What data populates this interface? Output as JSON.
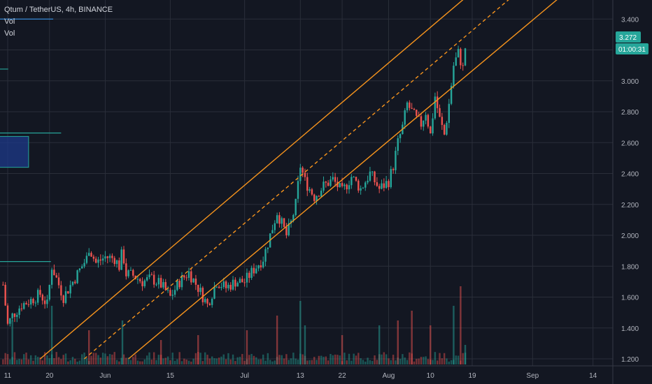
{
  "header": {
    "symbol": "Qtum / TetherUS, 4h, BINANCE",
    "indicators": [
      "Vol",
      "Vol"
    ]
  },
  "price_badge": {
    "price": "3.272",
    "countdown": "01:00:31",
    "color": "#26a69a"
  },
  "colors": {
    "background": "#131722",
    "grid": "#2a2e39",
    "up": "#26a69a",
    "down": "#ef5350",
    "channel": "#f7941d",
    "zone_fill": "#1e3a8a",
    "zone_border": "#26a69a"
  },
  "chart_data": {
    "type": "candlestick",
    "title": "Qtum / TetherUS, 4h, BINANCE",
    "y_ticks": [
      "3.400",
      "3.200",
      "3.000",
      "2.800",
      "2.600",
      "2.400",
      "2.200",
      "2.000",
      "1.800",
      "1.600",
      "1.400",
      "1.200"
    ],
    "ylim": [
      1.17,
      3.49
    ],
    "x_ticks": [
      "11",
      "20",
      "Jun",
      "15",
      "Jul",
      "13",
      "22",
      "Aug",
      "10",
      "19",
      "Sep",
      "14"
    ],
    "x_tick_days": [
      0,
      9,
      21,
      35,
      51,
      63,
      72,
      82,
      91,
      100,
      113,
      126
    ],
    "close_series": [
      [
        -1,
        1.68
      ],
      [
        0,
        1.42
      ],
      [
        1,
        1.48
      ],
      [
        3,
        1.55
      ],
      [
        5,
        1.58
      ],
      [
        7,
        1.62
      ],
      [
        8.5,
        1.55
      ],
      [
        9.5,
        1.8
      ],
      [
        11,
        1.68
      ],
      [
        12,
        1.6
      ],
      [
        14,
        1.7
      ],
      [
        16,
        1.8
      ],
      [
        17,
        1.85
      ],
      [
        17.5,
        1.92
      ],
      [
        19,
        1.82
      ],
      [
        21,
        1.86
      ],
      [
        23,
        1.85
      ],
      [
        24,
        1.8
      ],
      [
        24.7,
        1.9
      ],
      [
        25.5,
        1.75
      ],
      [
        27,
        1.74
      ],
      [
        29,
        1.7
      ],
      [
        31,
        1.72
      ],
      [
        33,
        1.68
      ],
      [
        35,
        1.6
      ],
      [
        37,
        1.7
      ],
      [
        39,
        1.76
      ],
      [
        41,
        1.66
      ],
      [
        43,
        1.55
      ],
      [
        45,
        1.7
      ],
      [
        47,
        1.66
      ],
      [
        49,
        1.7
      ],
      [
        51,
        1.7
      ],
      [
        53,
        1.78
      ],
      [
        55,
        1.85
      ],
      [
        57,
        2.05
      ],
      [
        58,
        2.15
      ],
      [
        60,
        2.0
      ],
      [
        61,
        2.08
      ],
      [
        62,
        2.2
      ],
      [
        63,
        2.45
      ],
      [
        64,
        2.35
      ],
      [
        66,
        2.25
      ],
      [
        68,
        2.32
      ],
      [
        70,
        2.36
      ],
      [
        72,
        2.28
      ],
      [
        74,
        2.38
      ],
      [
        76,
        2.3
      ],
      [
        78,
        2.4
      ],
      [
        80,
        2.3
      ],
      [
        82,
        2.35
      ],
      [
        83,
        2.45
      ],
      [
        84,
        2.6
      ],
      [
        85,
        2.7
      ],
      [
        86,
        2.85
      ],
      [
        87,
        2.8
      ],
      [
        88,
        2.75
      ],
      [
        89,
        2.72
      ],
      [
        90,
        2.8
      ],
      [
        91,
        2.65
      ],
      [
        92,
        2.9
      ],
      [
        93,
        2.75
      ],
      [
        94,
        2.65
      ],
      [
        95,
        2.85
      ],
      [
        96,
        3.1
      ],
      [
        97,
        3.18
      ],
      [
        98,
        3.08
      ],
      [
        98.7,
        3.27
      ]
    ],
    "volume_bars": [
      [
        1,
        0.9
      ],
      [
        9.5,
        1.2
      ],
      [
        17.5,
        0.7
      ],
      [
        24.7,
        0.9
      ],
      [
        33,
        0.5
      ],
      [
        41,
        0.6
      ],
      [
        51.5,
        0.7
      ],
      [
        58,
        1.0
      ],
      [
        63,
        1.3
      ],
      [
        64,
        0.8
      ],
      [
        72,
        0.6
      ],
      [
        80,
        0.8
      ],
      [
        84,
        0.9
      ],
      [
        87,
        1.1
      ],
      [
        91,
        0.8
      ],
      [
        96,
        1.2
      ],
      [
        97.5,
        1.6
      ],
      [
        98.5,
        0.4
      ]
    ],
    "annotations": {
      "channel": {
        "type": "parallel_channel",
        "upper": [
          [
            7,
            1.2
          ],
          [
            99,
            3.55
          ]
        ],
        "median": [
          [
            16.5,
            1.2
          ],
          [
            99,
            3.3
          ]
        ],
        "lower": [
          [
            26,
            1.2
          ],
          [
            99,
            3.04
          ]
        ]
      },
      "zones": [
        {
          "x1": -3,
          "x2": 4.5,
          "y1": 2.44,
          "y2": 2.64,
          "kind": "box"
        },
        {
          "x1": -3,
          "x2": -2.5,
          "y1": 2.05,
          "y2": 2.23,
          "kind": "box"
        }
      ],
      "levels": [
        {
          "x1": -3,
          "x2": 0.1,
          "y": 3.076
        },
        {
          "x1": -3,
          "x2": 11.5,
          "y": 2.662
        },
        {
          "x1": -3,
          "x2": 9.3,
          "y": 1.83
        }
      ],
      "top_line": {
        "x1": -3,
        "x2": 9.8,
        "y": 3.4
      }
    }
  }
}
